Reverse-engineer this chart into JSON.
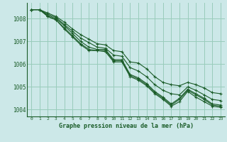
{
  "title": "Graphe pression niveau de la mer (hPa)",
  "background_color": "#cce8e8",
  "grid_color": "#99ccbb",
  "line_color": "#1a5c28",
  "xlim": [
    -0.5,
    23.5
  ],
  "ylim": [
    1003.7,
    1008.7
  ],
  "yticks": [
    1004,
    1005,
    1006,
    1007,
    1008
  ],
  "xticks": [
    0,
    1,
    2,
    3,
    4,
    5,
    6,
    7,
    8,
    9,
    10,
    11,
    12,
    13,
    14,
    15,
    16,
    17,
    18,
    19,
    20,
    21,
    22,
    23
  ],
  "series": [
    [
      1008.4,
      1008.4,
      1008.1,
      1007.95,
      1007.55,
      1007.2,
      1006.85,
      1006.6,
      1006.6,
      1006.55,
      1006.1,
      1006.1,
      1005.45,
      1005.3,
      1005.05,
      1004.7,
      1004.45,
      1004.15,
      1004.35,
      1004.8,
      1004.55,
      1004.35,
      1004.15,
      1004.1
    ],
    [
      1008.4,
      1008.4,
      1008.1,
      1007.95,
      1007.6,
      1007.25,
      1006.9,
      1006.65,
      1006.6,
      1006.6,
      1006.15,
      1006.15,
      1005.5,
      1005.35,
      1005.1,
      1004.75,
      1004.5,
      1004.2,
      1004.45,
      1004.85,
      1004.65,
      1004.45,
      1004.2,
      1004.15
    ],
    [
      1008.4,
      1008.4,
      1008.15,
      1008.0,
      1007.7,
      1007.35,
      1007.0,
      1006.75,
      1006.65,
      1006.65,
      1006.2,
      1006.2,
      1005.55,
      1005.4,
      1005.15,
      1004.8,
      1004.55,
      1004.25,
      1004.5,
      1004.9,
      1004.7,
      1004.5,
      1004.25,
      1004.2
    ],
    [
      1008.4,
      1008.4,
      1008.2,
      1008.05,
      1007.75,
      1007.45,
      1007.15,
      1006.95,
      1006.75,
      1006.7,
      1006.4,
      1006.35,
      1005.85,
      1005.7,
      1005.45,
      1005.1,
      1004.85,
      1004.7,
      1004.65,
      1005.0,
      1004.85,
      1004.65,
      1004.45,
      1004.4
    ],
    [
      1008.4,
      1008.4,
      1008.25,
      1008.1,
      1007.85,
      1007.55,
      1007.3,
      1007.1,
      1006.9,
      1006.85,
      1006.6,
      1006.55,
      1006.1,
      1006.05,
      1005.8,
      1005.45,
      1005.2,
      1005.1,
      1005.05,
      1005.2,
      1005.1,
      1004.95,
      1004.75,
      1004.7
    ]
  ]
}
